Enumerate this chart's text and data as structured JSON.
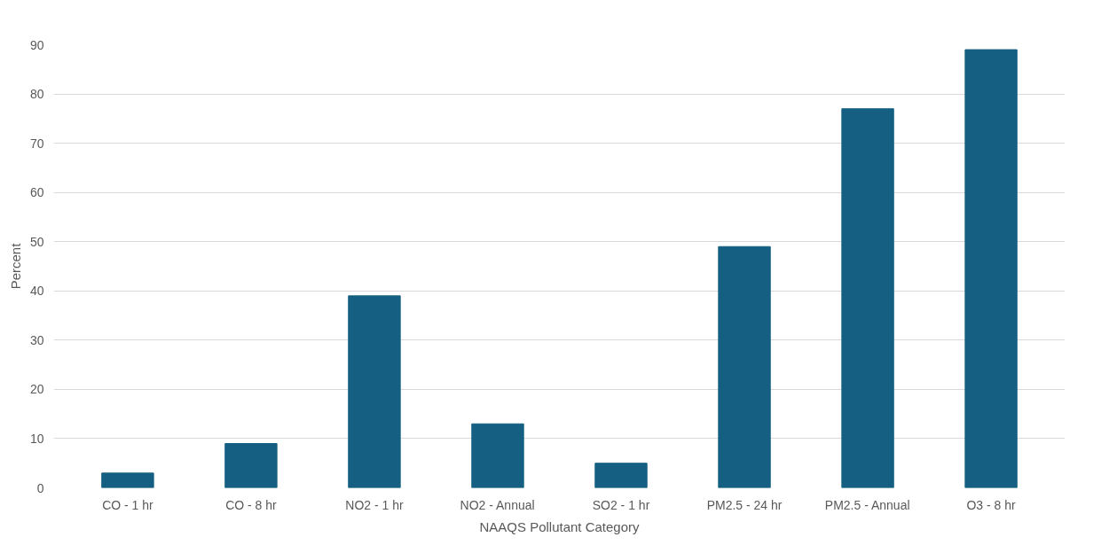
{
  "chart_data": {
    "type": "bar",
    "xlabel": "NAAQS Pollutant Category",
    "ylabel": "Percent",
    "categories": [
      "CO - 1 hr",
      "CO - 8 hr",
      "NO2 - 1 hr",
      "NO2 - Annual",
      "SO2 - 1 hr",
      "PM2.5 - 24 hr",
      "PM2.5 - Annual",
      "O3 - 8 hr"
    ],
    "values": [
      3,
      9,
      39,
      13,
      5,
      49,
      77,
      89
    ],
    "color": "#156082",
    "ylim": [
      0,
      90
    ],
    "yticks": [
      0,
      10,
      20,
      30,
      40,
      50,
      60,
      70,
      80,
      90
    ],
    "grid": "y"
  }
}
